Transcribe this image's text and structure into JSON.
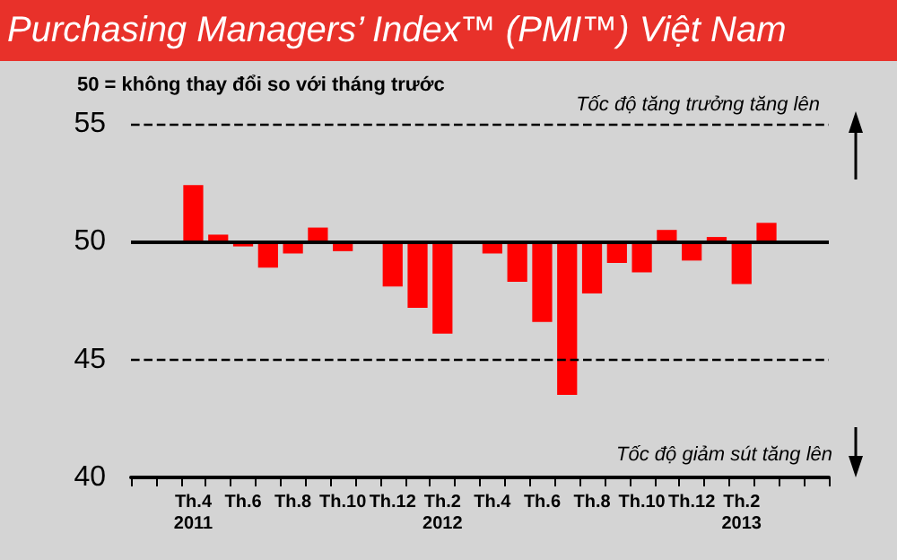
{
  "chart_data": {
    "type": "bar",
    "title": "Purchasing Managers’ Index™ (PMI™) Việt Nam",
    "categories": [
      null,
      null,
      "Th.4\n2011",
      null,
      "Th.6",
      null,
      "Th.8",
      null,
      "Th.10",
      null,
      "Th.12",
      null,
      "Th.2\n2012",
      null,
      "Th.4",
      null,
      "Th.6",
      null,
      "Th.8",
      null,
      "Th.10",
      null,
      "Th.12",
      null,
      "Th.2\n2013",
      null,
      null,
      null
    ],
    "base": [
      null,
      null,
      50,
      50,
      50,
      50,
      50,
      50,
      50,
      null,
      50,
      50,
      50,
      null,
      50,
      50,
      50,
      50,
      50,
      50,
      50,
      50,
      50,
      50,
      50,
      50,
      null,
      null
    ],
    "values": [
      null,
      null,
      2.4,
      0.3,
      -0.2,
      -1.1,
      -0.5,
      0.6,
      -0.4,
      null,
      -1.9,
      -2.8,
      -3.9,
      null,
      -0.5,
      -1.7,
      -3.4,
      -6.5,
      -2.2,
      -0.9,
      -1.3,
      0.5,
      -0.8,
      0.2,
      -1.8,
      0.8,
      null,
      null
    ],
    "color": "#ff0000",
    "ylim": [
      40,
      55
    ],
    "yticks": [
      40,
      45,
      50,
      55
    ],
    "ref_lines": [
      {
        "axis": "y",
        "value": 55,
        "label": "Tốc độ tăng trưởng tăng lên",
        "color": "#000000",
        "line_style": "dashed"
      },
      {
        "axis": "y",
        "value": 50,
        "label": null,
        "color": "#000000",
        "line_style": "solid"
      },
      {
        "axis": "y",
        "value": 45,
        "label": null,
        "color": "#000000",
        "line_style": "dashed"
      }
    ],
    "annotations": [
      "50 = không thay đổi so với tháng trước",
      "Tốc độ giảm sút tăng lên"
    ],
    "grid": false
  }
}
